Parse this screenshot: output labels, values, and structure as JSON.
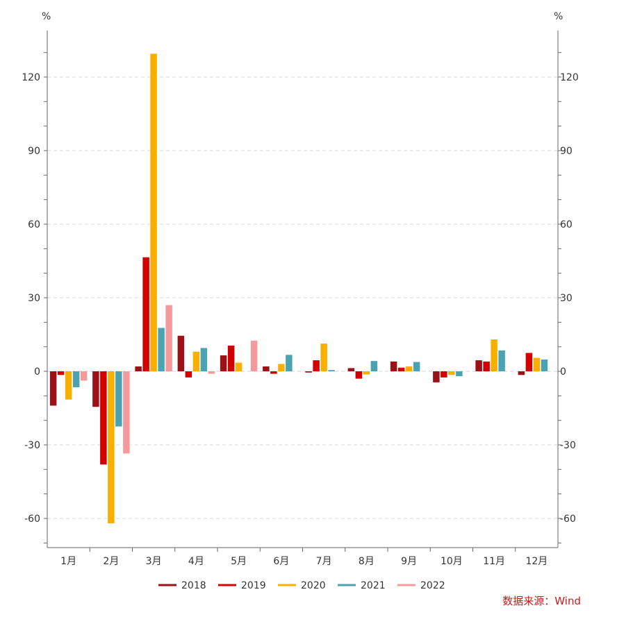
{
  "chart_data": {
    "type": "bar",
    "title": "",
    "unit_left": "%",
    "unit_right": "%",
    "categories": [
      "1月",
      "2月",
      "3月",
      "4月",
      "5月",
      "6月",
      "7月",
      "8月",
      "9月",
      "10月",
      "11月",
      "12月"
    ],
    "ylim": [
      -70,
      140
    ],
    "yticks": [
      -60,
      -30,
      0,
      30,
      60,
      90,
      120
    ],
    "grid": true,
    "legend_position": "bottom-center",
    "series": [
      {
        "name": "2018",
        "color": "#9c1018",
        "values": [
          -14,
          -14.5,
          2,
          14.5,
          6.5,
          2,
          -0.5,
          1.3,
          4,
          -4.5,
          4.5,
          -1.5
        ]
      },
      {
        "name": "2019",
        "color": "#d40000",
        "values": [
          -1.5,
          -38,
          46.5,
          -2.5,
          10.5,
          -1,
          4.5,
          -3,
          1.5,
          -2.5,
          4,
          7.5
        ]
      },
      {
        "name": "2020",
        "color": "#f7b000",
        "values": [
          -11.5,
          -62,
          129.5,
          8,
          3.5,
          3,
          11.3,
          -1.3,
          2,
          -1.5,
          13,
          5.5
        ]
      },
      {
        "name": "2021",
        "color": "#4ba3b2",
        "values": [
          -6.5,
          -22.5,
          17.7,
          9.5,
          null,
          6.7,
          0.5,
          4.2,
          3.8,
          -2,
          8.5,
          4.8
        ]
      },
      {
        "name": "2022",
        "color": "#f59a9a",
        "values": [
          -3.8,
          -33.5,
          27,
          -1,
          12.5,
          null,
          null,
          null,
          null,
          null,
          null,
          null
        ]
      }
    ]
  },
  "source_label": "数据来源：Wind"
}
